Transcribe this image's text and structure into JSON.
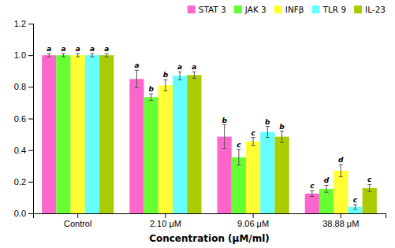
{
  "chart_data": {
    "type": "bar",
    "categories": [
      "Control",
      "2.10 μM",
      "9.06 μM",
      "38.88 μM"
    ],
    "series": [
      {
        "name": "STAT 3",
        "color": "#FF66CC",
        "values": [
          1.0,
          0.85,
          0.485,
          0.125
        ],
        "errors": [
          0.01,
          0.055,
          0.075,
          0.018
        ],
        "letters": [
          "a",
          "a",
          "b",
          "c"
        ]
      },
      {
        "name": "JAK 3",
        "color": "#66FF33",
        "values": [
          1.0,
          0.735,
          0.355,
          0.155
        ],
        "errors": [
          0.01,
          0.02,
          0.05,
          0.022
        ],
        "letters": [
          "a",
          "b",
          "c",
          "d"
        ]
      },
      {
        "name": "INFβ",
        "color": "#FFFF33",
        "values": [
          1.0,
          0.81,
          0.455,
          0.27
        ],
        "errors": [
          0.01,
          0.035,
          0.025,
          0.038
        ],
        "letters": [
          "a",
          "b",
          "c",
          "d"
        ]
      },
      {
        "name": "TLR 9",
        "color": "#66FFFF",
        "values": [
          1.0,
          0.87,
          0.515,
          0.04
        ],
        "errors": [
          0.01,
          0.025,
          0.035,
          0.015
        ],
        "letters": [
          "a",
          "a",
          "b",
          "c"
        ]
      },
      {
        "name": "IL-23",
        "color": "#AACC00",
        "values": [
          1.0,
          0.875,
          0.485,
          0.16
        ],
        "errors": [
          0.01,
          0.02,
          0.035,
          0.022
        ],
        "letters": [
          "a",
          "a",
          "b",
          "c"
        ]
      }
    ],
    "xlabel": "Concentration (μM/ml)",
    "ylim": [
      0,
      1.2
    ],
    "yticks": [
      {
        "value": 0,
        "label": "0.0"
      },
      0.2,
      0.4,
      0.6,
      0.8,
      {
        "value": 1.0,
        "label": "1.0"
      },
      1.2
    ],
    "grid": false,
    "legend": "upper right"
  }
}
